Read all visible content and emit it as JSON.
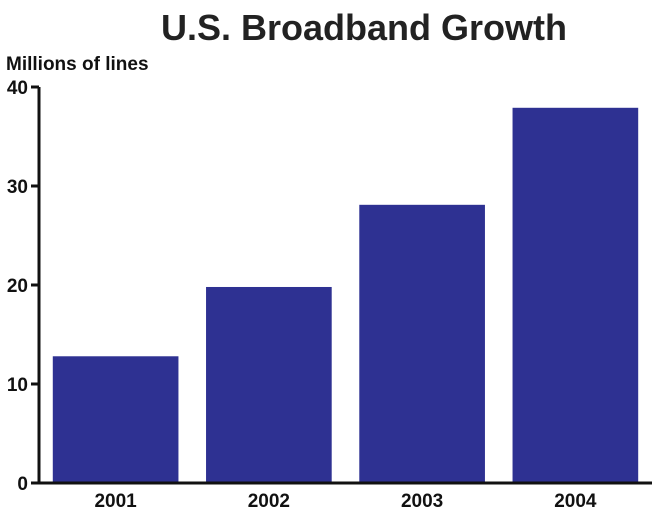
{
  "chart_data": {
    "type": "bar",
    "title": "U.S. Broadband Growth",
    "ylabel": "Millions of lines",
    "xlabel": "",
    "categories": [
      "2001",
      "2002",
      "2003",
      "2004"
    ],
    "values": [
      12.8,
      19.8,
      28.1,
      37.9
    ],
    "ylim": [
      0,
      40
    ],
    "yticks": [
      0,
      10,
      20,
      30,
      40
    ],
    "ytick_labels": [
      "0",
      "10",
      "20",
      "30",
      "40"
    ],
    "grid": false,
    "colors": {
      "bar": "#2e3192",
      "axis": "#111111",
      "text": "#111111"
    }
  }
}
